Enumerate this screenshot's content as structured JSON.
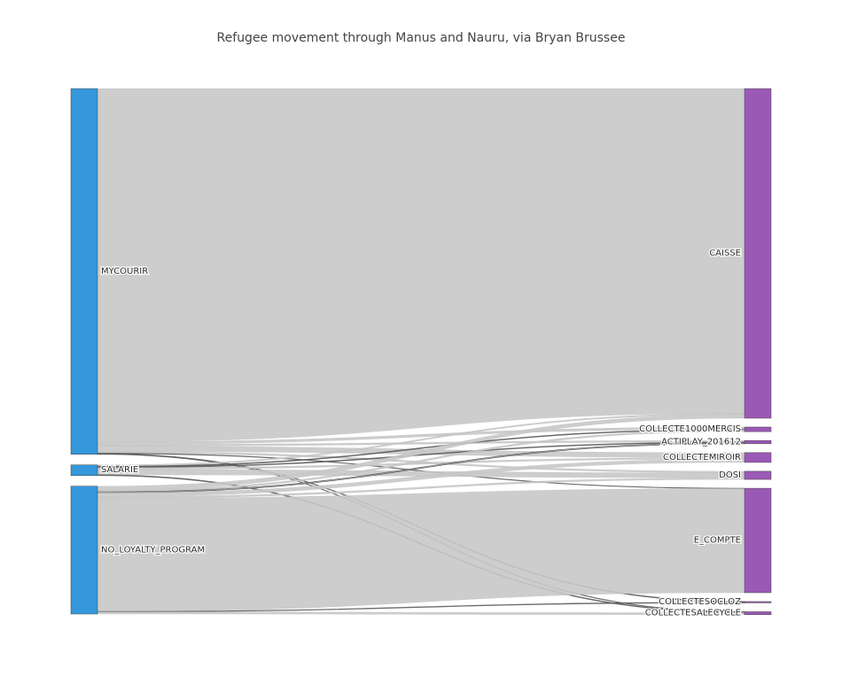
{
  "chart_data": {
    "type": "sankey",
    "title": "Refugee movement through Manus and Nauru, via Bryan Brussee",
    "colors": {
      "source": "#3498db",
      "target": "#9b59b6",
      "link": "#c8c8c8",
      "link_line": "#555555"
    },
    "sources": [
      {
        "id": "MYCOURIR",
        "label": "MYCOURIR",
        "value": 1030
      },
      {
        "id": "SALARIE",
        "label": "SALARIE",
        "value": 30
      },
      {
        "id": "NO_LOYALTY_PROGRAM",
        "label": "NO_LOYALTY_PROGRAM",
        "value": 360
      }
    ],
    "targets": [
      {
        "id": "CAISSE",
        "label": "CAISSE",
        "value": 1010
      },
      {
        "id": "COLLECTE1000MERCIS",
        "label": "COLLECTE1000MERCIS",
        "value": 14
      },
      {
        "id": "ACTIPLAY_201612",
        "label": "ACTIPLAY_201612",
        "value": 10
      },
      {
        "id": "COLLECTEMIROIR",
        "label": "COLLECTEMIROIR",
        "value": 30
      },
      {
        "id": "DOSI",
        "label": "DOSI",
        "value": 25
      },
      {
        "id": "E_COMPTE",
        "label": "E_COMPTE",
        "value": 320
      },
      {
        "id": "COLLECTESOCLOZ",
        "label": "COLLECTESOCLOZ",
        "value": 2
      },
      {
        "id": "COLLECTESALECYCLE",
        "label": "COLLECTESALECYCLE",
        "value": 9
      }
    ],
    "links": [
      {
        "source": "MYCOURIR",
        "target": "CAISSE",
        "value": 995
      },
      {
        "source": "MYCOURIR",
        "target": "COLLECTE1000MERCIS",
        "value": 7
      },
      {
        "source": "MYCOURIR",
        "target": "ACTIPLAY_201612",
        "value": 5
      },
      {
        "source": "MYCOURIR",
        "target": "COLLECTEMIROIR",
        "value": 15
      },
      {
        "source": "MYCOURIR",
        "target": "DOSI",
        "value": 5
      },
      {
        "source": "MYCOURIR",
        "target": "E_COMPTE",
        "value": 1
      },
      {
        "source": "MYCOURIR",
        "target": "COLLECTESOCLOZ",
        "value": 1
      },
      {
        "source": "MYCOURIR",
        "target": "COLLECTESALECYCLE",
        "value": 1
      },
      {
        "source": "SALARIE",
        "target": "CAISSE",
        "value": 4
      },
      {
        "source": "SALARIE",
        "target": "COLLECTE1000MERCIS",
        "value": 2
      },
      {
        "source": "SALARIE",
        "target": "ACTIPLAY_201612",
        "value": 2
      },
      {
        "source": "SALARIE",
        "target": "COLLECTEMIROIR",
        "value": 5
      },
      {
        "source": "SALARIE",
        "target": "DOSI",
        "value": 15
      },
      {
        "source": "SALARIE",
        "target": "COLLECTESALECYCLE",
        "value": 2
      },
      {
        "source": "NO_LOYALTY_PROGRAM",
        "target": "CAISSE",
        "value": 11
      },
      {
        "source": "NO_LOYALTY_PROGRAM",
        "target": "COLLECTE1000MERCIS",
        "value": 5
      },
      {
        "source": "NO_LOYALTY_PROGRAM",
        "target": "ACTIPLAY_201612",
        "value": 3
      },
      {
        "source": "NO_LOYALTY_PROGRAM",
        "target": "COLLECTEMIROIR",
        "value": 10
      },
      {
        "source": "NO_LOYALTY_PROGRAM",
        "target": "DOSI",
        "value": 5
      },
      {
        "source": "NO_LOYALTY_PROGRAM",
        "target": "E_COMPTE",
        "value": 319
      },
      {
        "source": "NO_LOYALTY_PROGRAM",
        "target": "COLLECTESOCLOZ",
        "value": 1
      },
      {
        "source": "NO_LOYALTY_PROGRAM",
        "target": "COLLECTESALECYCLE",
        "value": 6
      }
    ]
  }
}
